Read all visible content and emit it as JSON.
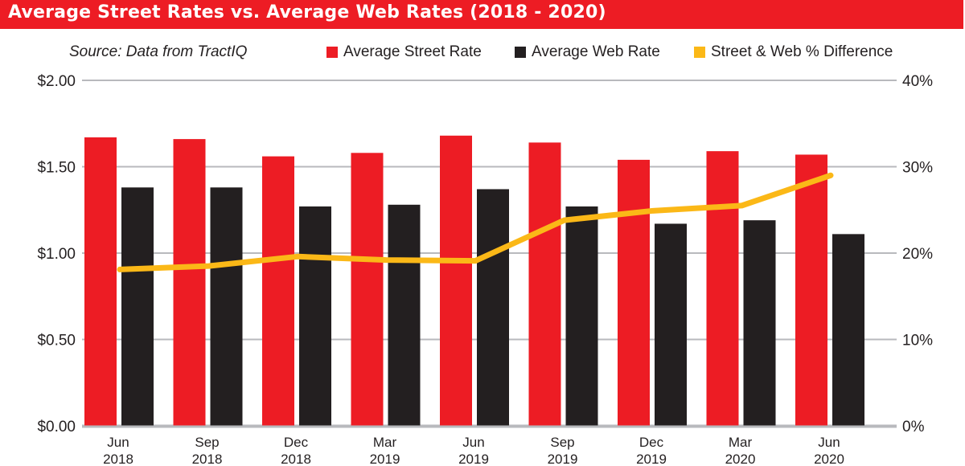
{
  "chart_data": {
    "type": "bar",
    "title": "Average Street Rates vs. Average Web Rates (2018 - 2020)",
    "subtitle": "Source: Data from TractIQ",
    "categories": [
      [
        "Jun",
        "2018"
      ],
      [
        "Sep",
        "2018"
      ],
      [
        "Dec",
        "2018"
      ],
      [
        "Mar",
        "2019"
      ],
      [
        "Jun",
        "2019"
      ],
      [
        "Sep",
        "2019"
      ],
      [
        "Dec",
        "2019"
      ],
      [
        "Mar",
        "2020"
      ],
      [
        "Jun",
        "2020"
      ]
    ],
    "series": [
      {
        "name": "Average Street Rate",
        "type": "bar",
        "axis": "left",
        "color": "#ed1c24",
        "values": [
          1.67,
          1.66,
          1.56,
          1.58,
          1.68,
          1.64,
          1.54,
          1.59,
          1.57
        ]
      },
      {
        "name": "Average Web Rate",
        "type": "bar",
        "axis": "left",
        "color": "#231f20",
        "values": [
          1.38,
          1.38,
          1.27,
          1.28,
          1.37,
          1.27,
          1.17,
          1.19,
          1.11
        ]
      },
      {
        "name": "Street & Web % Difference",
        "type": "line",
        "axis": "right",
        "color": "#fbb817",
        "values": [
          18.1,
          18.5,
          19.6,
          19.2,
          19.1,
          23.8,
          24.9,
          25.5,
          29.0
        ]
      }
    ],
    "left_axis": {
      "ylim": [
        0,
        2
      ],
      "ticks": [
        0,
        0.5,
        1,
        1.5,
        2
      ],
      "tick_labels": [
        "$0.00",
        "$0.50",
        "$1.00",
        "$1.50",
        "$2.00"
      ]
    },
    "right_axis": {
      "ylim": [
        0,
        40
      ],
      "ticks": [
        0,
        10,
        20,
        30,
        40
      ],
      "tick_labels": [
        "0%",
        "10%",
        "20%",
        "30%",
        "40%"
      ]
    },
    "grid": true,
    "legend": "top-right",
    "xlabel": "",
    "ylabel": ""
  },
  "colors": {
    "title_bg": "#ed1c24",
    "grid": "#b8b9bd",
    "text": "#231f20"
  }
}
